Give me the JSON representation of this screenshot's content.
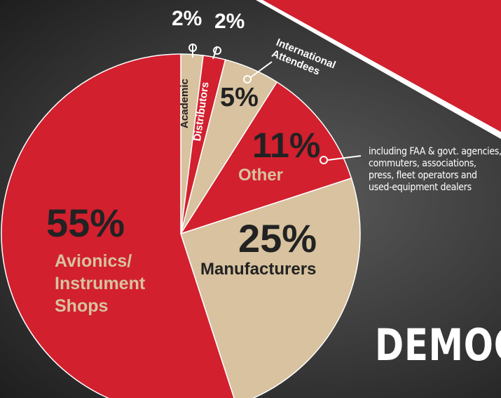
{
  "chart_data": {
    "type": "pie",
    "title": "DEMOG",
    "categories": [
      "Academic",
      "Distributors",
      "International Attendees",
      "Other",
      "Manufacturers",
      "Avionics/ Instrument Shops"
    ],
    "values": [
      2,
      2,
      5,
      11,
      25,
      55
    ],
    "value_labels": [
      "2%",
      "2%",
      "5%",
      "11%",
      "25%",
      "55%"
    ],
    "colors": [
      "#d8c29f",
      "#d2202e",
      "#d8c29f",
      "#d2202e",
      "#d8c29f",
      "#d2202e"
    ],
    "annotations": [
      "including FAA & govt. agencies, commuters, associations, press, fleet operators and used-equipment dealers"
    ]
  }
}
